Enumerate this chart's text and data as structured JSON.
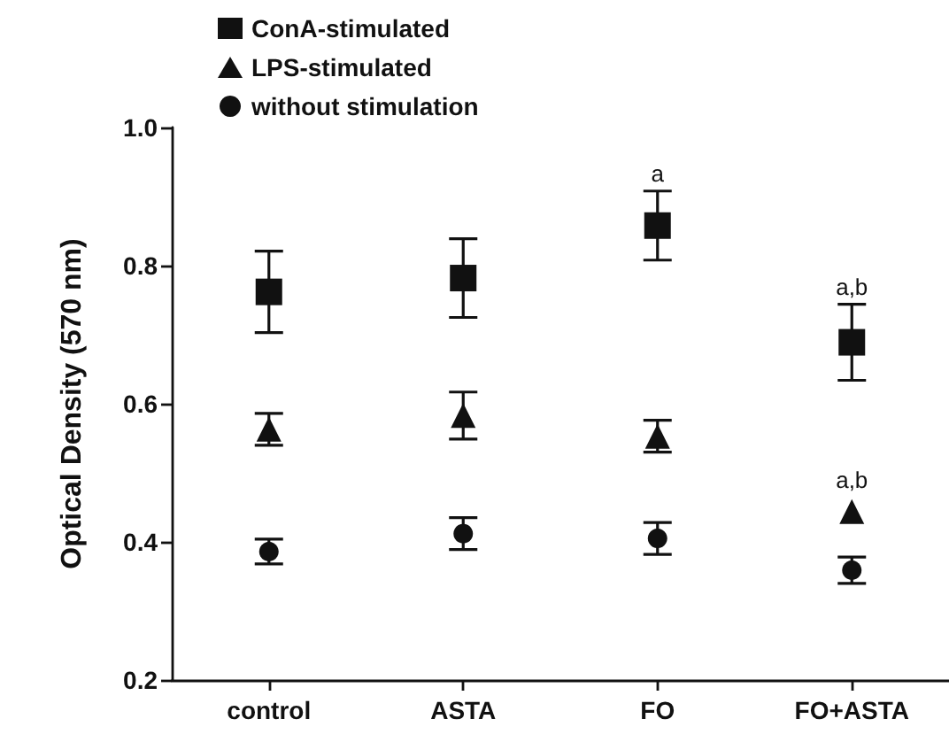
{
  "chart_data": {
    "type": "scatter",
    "ylabel": "Optical Density (570 nm)",
    "categories": [
      "control",
      "ASTA",
      "FO",
      "FO+ASTA"
    ],
    "series": [
      {
        "name": "ConA-stimulated",
        "color": "#111111",
        "marker": "square",
        "values": [
          0.762,
          0.782,
          0.858,
          0.689
        ],
        "errors": [
          0.059,
          0.057,
          0.05,
          0.055
        ]
      },
      {
        "name": "LPS-stimulated",
        "color": "#111111",
        "marker": "triangle",
        "values": [
          0.563,
          0.583,
          0.553,
          0.444
        ],
        "errors": [
          0.023,
          0.034,
          0.023,
          null
        ]
      },
      {
        "name": "without stimulation",
        "color": "#111111",
        "marker": "circle",
        "values": [
          0.386,
          0.412,
          0.405,
          0.359
        ],
        "errors": [
          0.018,
          0.023,
          0.023,
          0.019
        ]
      }
    ],
    "ylim": [
      0.2,
      1.0
    ],
    "yticks": [
      0.2,
      0.4,
      0.6,
      0.8,
      {
        "value": 1.0,
        "label": "1.0"
      }
    ],
    "grid": false,
    "legend": "top left",
    "annotations": [
      {
        "text": "a",
        "x": "FO",
        "y": 0.858
      },
      {
        "text": "a,b",
        "x": "FO+ASTA",
        "y": 0.689
      },
      {
        "text": "a,b",
        "x": "FO+ASTA",
        "y": 0.444
      }
    ]
  }
}
